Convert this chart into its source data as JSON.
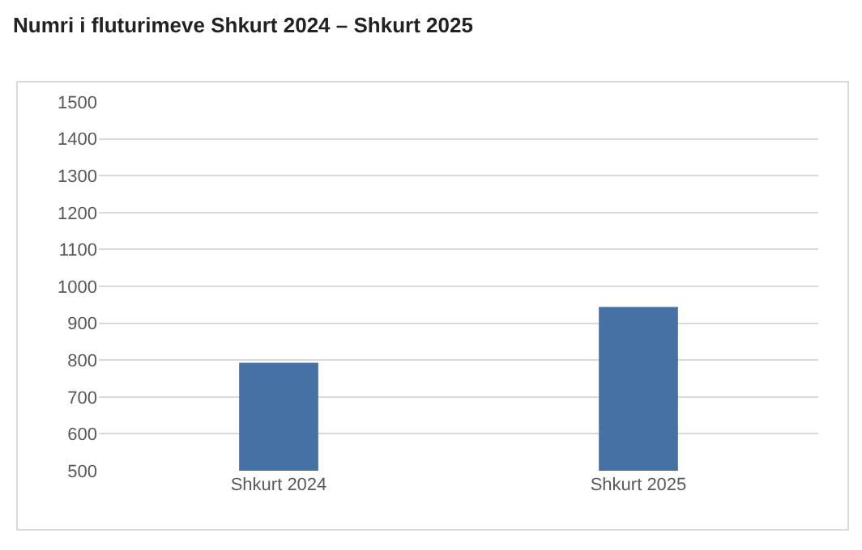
{
  "chart_data": {
    "type": "bar",
    "title": "Numri i fluturimeve Shkurt 2024 – Shkurt 2025",
    "categories": [
      "Shkurt 2024",
      "Shkurt 2025"
    ],
    "values": [
      793,
      944
    ],
    "color": "#4671a5",
    "ylim": [
      500,
      1500
    ],
    "yticks": [
      500,
      600,
      700,
      800,
      900,
      1000,
      1100,
      1200,
      1300,
      1400,
      1500
    ],
    "grid": "y"
  }
}
